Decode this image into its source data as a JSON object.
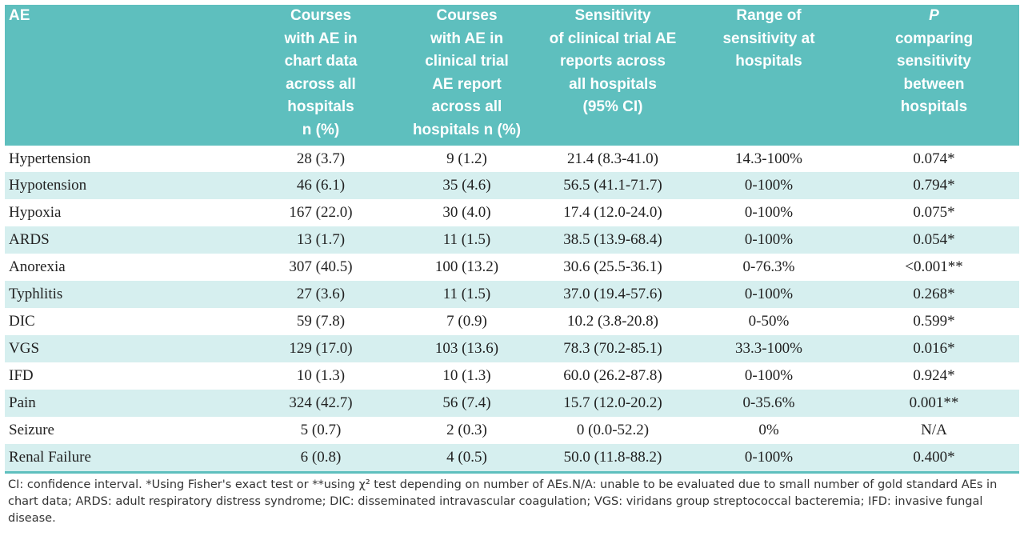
{
  "table": {
    "headers": [
      "AE",
      "Courses\nwith AE in\nchart data\nacross all\nhospitals\nn (%)",
      "Courses\nwith AE in\nclinical trial\nAE report\nacross all\nhospitals n (%)",
      "Sensitivity\nof clinical trial  AE\nreports across\nall hospitals\n(95% CI)",
      "Range of\nsensitivity at\nhospitals",
      "P\ncomparing\nsensitivity\nbetween\nhospitals"
    ],
    "rows": [
      [
        "Hypertension",
        "28 (3.7)",
        "9 (1.2)",
        "21.4 (8.3-41.0)",
        "14.3-100%",
        "0.074*"
      ],
      [
        "Hypotension",
        "46 (6.1)",
        "35 (4.6)",
        "56.5 (41.1-71.7)",
        "0-100%",
        "0.794*"
      ],
      [
        "Hypoxia",
        "167 (22.0)",
        "30 (4.0)",
        "17.4 (12.0-24.0)",
        "0-100%",
        "0.075*"
      ],
      [
        "ARDS",
        "13 (1.7)",
        "11 (1.5)",
        "38.5 (13.9-68.4)",
        "0-100%",
        "0.054*"
      ],
      [
        "Anorexia",
        "307 (40.5)",
        "100 (13.2)",
        "30.6 (25.5-36.1)",
        "0-76.3%",
        "<0.001**"
      ],
      [
        "Typhlitis",
        "27 (3.6)",
        "11 (1.5)",
        "37.0 (19.4-57.6)",
        "0-100%",
        "0.268*"
      ],
      [
        "DIC",
        "59 (7.8)",
        "7 (0.9)",
        "10.2 (3.8-20.8)",
        "0-50%",
        "0.599*"
      ],
      [
        "VGS",
        "129 (17.0)",
        "103 (13.6)",
        "78.3 (70.2-85.1)",
        "33.3-100%",
        "0.016*"
      ],
      [
        "IFD",
        "10 (1.3)",
        "10 (1.3)",
        "60.0 (26.2-87.8)",
        "0-100%",
        "0.924*"
      ],
      [
        "Pain",
        "324 (42.7)",
        "56 (7.4)",
        "15.7 (12.0-20.2)",
        "0-35.6%",
        "0.001**"
      ],
      [
        "Seizure",
        "5 (0.7)",
        "2 (0.3)",
        "0 (0.0-52.2)",
        "0%",
        "N/A"
      ],
      [
        "Renal Failure",
        "6 (0.8)",
        "4 (0.5)",
        "50.0 (11.8-88.2)",
        "0-100%",
        "0.400*"
      ]
    ]
  },
  "footnote": "CI: confidence interval.  *Using Fisher's exact test or **using χ² test depending on number of AEs.N/A: unable to be evaluated due to small number of gold standard AEs in chart data; ARDS:  adult respiratory distress syndrome; DIC: disseminated intravascular coagulation; VGS: viridans group streptococcal bacteremia; IFD: invasive fungal disease.",
  "colors": {
    "header_bg": "#5ebfbe",
    "shade_row": "#d6efef"
  }
}
